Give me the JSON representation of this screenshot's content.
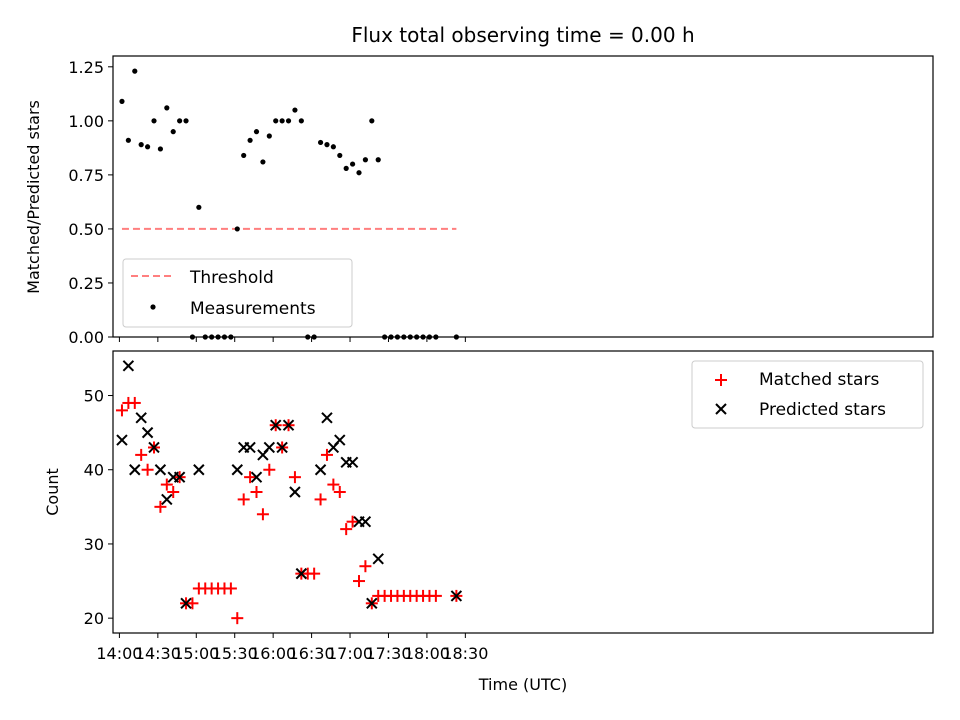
{
  "chart_data": [
    {
      "type": "scatter",
      "title": "Flux total observing time = 0.00 h",
      "xlabel": "",
      "ylabel": "Matched/Predicted stars",
      "xlim": [
        835,
        1475
      ],
      "ylim": [
        0,
        1.3
      ],
      "xticks": [
        840,
        870,
        900,
        930,
        960,
        990,
        1020,
        1050,
        1080,
        1110
      ],
      "yticks": [
        0.0,
        0.25,
        0.5,
        0.75,
        1.0,
        1.25
      ],
      "ytick_labels": [
        "0.00",
        "0.25",
        "0.50",
        "0.75",
        "1.00",
        "1.25"
      ],
      "legend": {
        "position": "lower-left",
        "entries": [
          "Threshold",
          "Measurements"
        ]
      },
      "threshold": {
        "name": "Threshold",
        "y": 0.5,
        "x_range": [
          842,
          1103
        ],
        "color": "#ff7f7f"
      },
      "series": [
        {
          "name": "Measurements",
          "marker": "dot",
          "color": "#000000",
          "x": [
            842,
            847,
            852,
            857,
            862,
            867,
            872,
            877,
            882,
            887,
            892,
            897,
            902,
            907,
            912,
            917,
            922,
            927,
            932,
            937,
            942,
            947,
            952,
            957,
            962,
            967,
            972,
            977,
            982,
            987,
            992,
            997,
            1002,
            1007,
            1012,
            1017,
            1022,
            1027,
            1032,
            1037,
            1042,
            1047,
            1052,
            1057,
            1062,
            1067,
            1072,
            1077,
            1082,
            1087,
            1103
          ],
          "y": [
            1.09,
            0.91,
            1.23,
            0.89,
            0.88,
            1.0,
            0.87,
            1.06,
            0.95,
            1.0,
            1.0,
            0.0,
            0.6,
            0.0,
            0.0,
            0.0,
            0.0,
            0.0,
            0.5,
            0.84,
            0.91,
            0.95,
            0.81,
            0.93,
            1.0,
            1.0,
            1.0,
            1.05,
            1.0,
            0.0,
            0.0,
            0.9,
            0.89,
            0.88,
            0.84,
            0.78,
            0.8,
            0.76,
            0.82,
            1.0,
            0.82,
            0.0,
            0.0,
            0.0,
            0.0,
            0.0,
            0.0,
            0.0,
            0.0,
            0.0,
            0.0
          ]
        }
      ]
    },
    {
      "type": "scatter",
      "title": "",
      "xlabel": "Time (UTC)",
      "ylabel": "Count",
      "xlim": [
        835,
        1475
      ],
      "ylim": [
        18,
        56
      ],
      "xticks": [
        840,
        870,
        900,
        930,
        960,
        990,
        1020,
        1050,
        1080,
        1110
      ],
      "xtick_labels": [
        "14:00",
        "14:30",
        "15:00",
        "15:30",
        "16:00",
        "16:30",
        "17:00",
        "17:30",
        "18:00",
        "18:30"
      ],
      "yticks": [
        20,
        30,
        40,
        50
      ],
      "ytick_labels": [
        "20",
        "30",
        "40",
        "50"
      ],
      "legend": {
        "position": "top-right",
        "entries": [
          "Matched stars",
          "Predicted stars"
        ]
      },
      "series": [
        {
          "name": "Matched stars",
          "marker": "plus",
          "color": "#ff0000",
          "x": [
            842,
            847,
            852,
            857,
            862,
            867,
            872,
            877,
            882,
            887,
            892,
            897,
            902,
            907,
            912,
            917,
            922,
            927,
            932,
            937,
            942,
            947,
            952,
            957,
            962,
            967,
            972,
            977,
            982,
            987,
            992,
            997,
            1002,
            1007,
            1012,
            1017,
            1022,
            1027,
            1032,
            1037,
            1042,
            1047,
            1052,
            1057,
            1062,
            1067,
            1072,
            1077,
            1082,
            1087,
            1103
          ],
          "y": [
            48,
            49,
            49,
            42,
            40,
            43,
            35,
            38,
            37,
            39,
            22,
            22,
            24,
            24,
            24,
            24,
            24,
            24,
            20,
            36,
            39,
            37,
            34,
            40,
            46,
            43,
            46,
            39,
            26,
            26,
            26,
            36,
            42,
            38,
            37,
            32,
            33,
            25,
            27,
            22,
            23,
            23,
            23,
            23,
            23,
            23,
            23,
            23,
            23,
            23,
            23
          ]
        },
        {
          "name": "Predicted stars",
          "marker": "x",
          "color": "#000000",
          "x": [
            842,
            847,
            852,
            857,
            862,
            867,
            872,
            877,
            882,
            887,
            892,
            902,
            932,
            937,
            942,
            947,
            952,
            957,
            962,
            967,
            972,
            977,
            982,
            997,
            1002,
            1007,
            1012,
            1017,
            1022,
            1027,
            1032,
            1037,
            1042,
            1103
          ],
          "y": [
            44,
            54,
            40,
            47,
            45,
            43,
            40,
            36,
            39,
            39,
            22,
            40,
            40,
            43,
            43,
            39,
            42,
            43,
            46,
            43,
            46,
            37,
            26,
            40,
            47,
            43,
            44,
            41,
            41,
            33,
            33,
            22,
            28,
            23
          ]
        }
      ]
    }
  ]
}
